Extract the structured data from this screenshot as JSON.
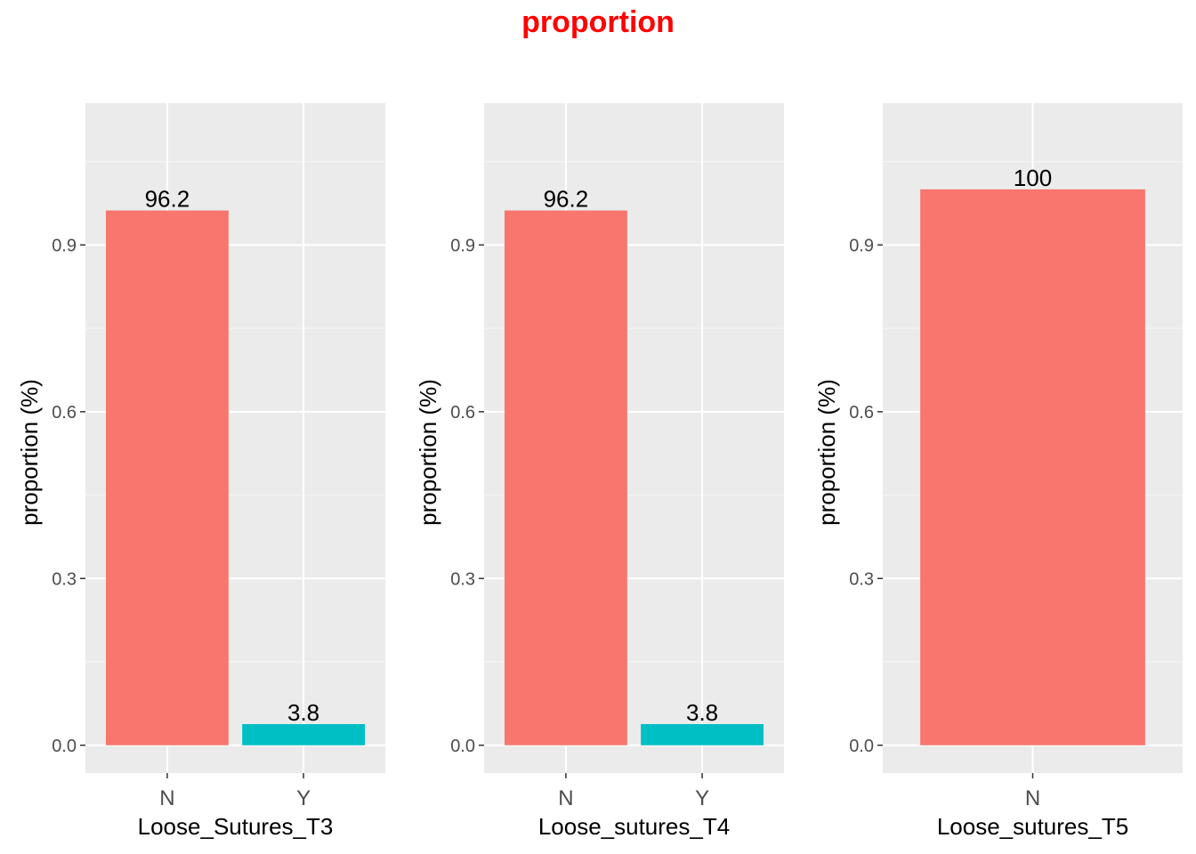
{
  "title": "proportion",
  "colors": {
    "title": "#ff0000",
    "panel_background": "#ebebeb",
    "major_grid": "#ffffff",
    "minor_grid": "#f5f5f5",
    "series": {
      "N": "#f8766d",
      "Y": "#00bfc4"
    }
  },
  "chart_data": [
    {
      "type": "bar",
      "xlabel": "Loose_Sutures_T3",
      "ylabel": "proportion (%)",
      "categories": [
        "N",
        "Y"
      ],
      "values": [
        0.962,
        0.038
      ],
      "data_labels": [
        "96.2",
        "3.8"
      ],
      "ylim": [
        -0.05,
        1.155
      ],
      "yticks": [
        0.0,
        0.3,
        0.6,
        0.9
      ],
      "ytick_labels": [
        "0.0",
        "0.3",
        "0.6",
        "0.9"
      ],
      "grid": true
    },
    {
      "type": "bar",
      "xlabel": "Loose_sutures_T4",
      "ylabel": "proportion (%)",
      "categories": [
        "N",
        "Y"
      ],
      "values": [
        0.962,
        0.038
      ],
      "data_labels": [
        "96.2",
        "3.8"
      ],
      "ylim": [
        -0.05,
        1.155
      ],
      "yticks": [
        0.0,
        0.3,
        0.6,
        0.9
      ],
      "ytick_labels": [
        "0.0",
        "0.3",
        "0.6",
        "0.9"
      ],
      "grid": true
    },
    {
      "type": "bar",
      "xlabel": "Loose_sutures_T5",
      "ylabel": "proportion (%)",
      "categories": [
        "N"
      ],
      "values": [
        1.0
      ],
      "data_labels": [
        "100"
      ],
      "ylim": [
        -0.05,
        1.155
      ],
      "yticks": [
        0.0,
        0.3,
        0.6,
        0.9
      ],
      "ytick_labels": [
        "0.0",
        "0.3",
        "0.6",
        "0.9"
      ],
      "grid": true
    }
  ]
}
